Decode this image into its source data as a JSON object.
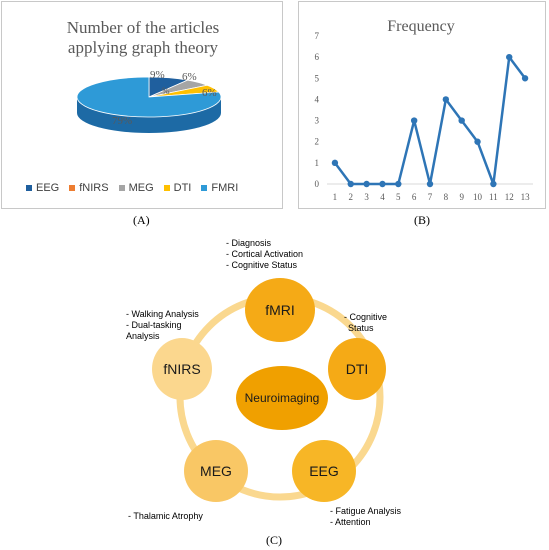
{
  "panel_a": {
    "title_line1": "Number of the articles",
    "title_line2": "applying graph theory",
    "label": "(A)"
  },
  "panel_b": {
    "title": "Frequency",
    "label": "(B)"
  },
  "chart_data": [
    {
      "type": "pie",
      "title": "Number of the articles applying graph theory",
      "categories": [
        "EEG",
        "fNIRS",
        "MEG",
        "DTI",
        "FMRI"
      ],
      "values": [
        9,
        0,
        6,
        6,
        79
      ],
      "data_labels": [
        "9%",
        "%",
        "6%",
        "6%",
        "79%"
      ],
      "colors": [
        "#1f5f9e",
        "#ed7d31",
        "#a5a5a5",
        "#ffc000",
        "#2e9ad7"
      ],
      "legend": "bottom"
    },
    {
      "type": "line",
      "title": "Frequency",
      "x": [
        1,
        2,
        3,
        4,
        5,
        6,
        7,
        8,
        9,
        10,
        11,
        12,
        13
      ],
      "values": [
        1,
        0,
        0,
        0,
        0,
        3,
        0,
        4,
        3,
        2,
        0,
        6,
        5
      ],
      "ylim": [
        0,
        7
      ],
      "yticks": [
        0,
        1,
        2,
        3,
        4,
        5,
        6,
        7
      ],
      "color": "#2e75b6",
      "grid": false
    }
  ],
  "diagram": {
    "label": "(C)",
    "center": "Neuroimaging",
    "nodes": {
      "fmri": "fMRI",
      "dti": "DTI",
      "eeg": "EEG",
      "meg": "MEG",
      "fnirs": "fNIRS"
    },
    "notes": {
      "fmri": [
        "-   Diagnosis",
        "-   Cortical Activation",
        "-   Cognitive Status"
      ],
      "dti": [
        "- Cognitive",
        "Status"
      ],
      "eeg": [
        "- Fatigue Analysis",
        "- Attention"
      ],
      "meg": [
        "- Thalamic Atrophy"
      ],
      "fnirs": [
        "- Walking Analysis",
        "- Dual-tasking",
        "Analysis"
      ]
    },
    "colors": {
      "ring": "#fad88f",
      "center": "#f0a000",
      "fmri": "#f5aa16",
      "dti": "#f5aa16",
      "eeg": "#f7b626",
      "meg": "#f9c765",
      "fnirs": "#fbd78e"
    }
  }
}
